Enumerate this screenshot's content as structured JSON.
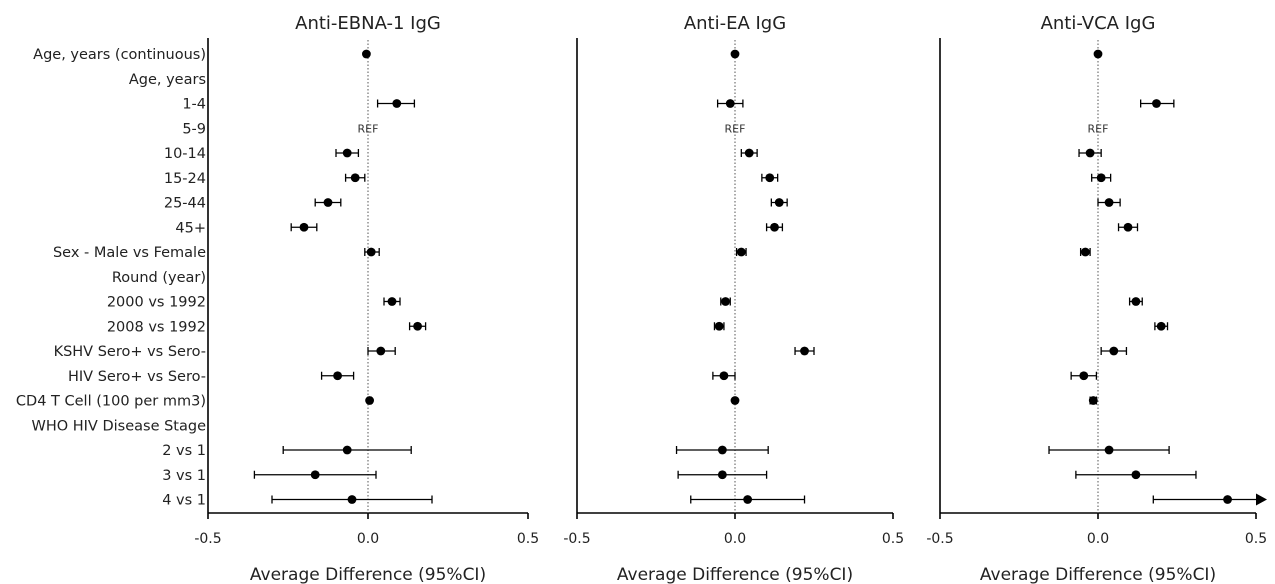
{
  "chart_data": {
    "type": "forest",
    "xlabel": "Average Difference (95%CI)",
    "xlim": [
      -0.5,
      0.5
    ],
    "xticks": [
      -0.5,
      0.0,
      0.5
    ],
    "xtick_labels": [
      "-0.5",
      "0.0",
      "0.5"
    ],
    "reference_text": "REF",
    "rows": [
      "Age, years (continuous)",
      "Age, years",
      "1-4",
      "5-9",
      "10-14",
      "15-24",
      "25-44",
      "45+",
      "Sex - Male vs Female",
      "Round (year)",
      "2000 vs 1992",
      "2008 vs 1992",
      "KSHV Sero+ vs Sero-",
      "HIV Sero+ vs Sero-",
      "CD4 T Cell (100 per mm3)",
      "WHO HIV Disease Stage",
      "2 vs 1",
      "3 vs 1",
      "4 vs 1"
    ],
    "panels": [
      {
        "title": "Anti-EBNA-1 IgG",
        "estimates": [
          {
            "est": -0.005,
            "lo": -0.005,
            "hi": -0.005
          },
          null,
          {
            "est": 0.09,
            "lo": 0.03,
            "hi": 0.145
          },
          "REF",
          {
            "est": -0.065,
            "lo": -0.1,
            "hi": -0.03
          },
          {
            "est": -0.04,
            "lo": -0.07,
            "hi": -0.01
          },
          {
            "est": -0.125,
            "lo": -0.165,
            "hi": -0.085
          },
          {
            "est": -0.2,
            "lo": -0.24,
            "hi": -0.16
          },
          {
            "est": 0.01,
            "lo": -0.01,
            "hi": 0.035
          },
          null,
          {
            "est": 0.075,
            "lo": 0.05,
            "hi": 0.1
          },
          {
            "est": 0.155,
            "lo": 0.13,
            "hi": 0.18
          },
          {
            "est": 0.04,
            "lo": 0.0,
            "hi": 0.085
          },
          {
            "est": -0.095,
            "lo": -0.145,
            "hi": -0.045
          },
          {
            "est": 0.005,
            "lo": 0.0,
            "hi": 0.01
          },
          null,
          {
            "est": -0.065,
            "lo": -0.265,
            "hi": 0.135
          },
          {
            "est": -0.165,
            "lo": -0.355,
            "hi": 0.025
          },
          {
            "est": -0.05,
            "lo": -0.3,
            "hi": 0.2
          }
        ]
      },
      {
        "title": "Anti-EA IgG",
        "estimates": [
          {
            "est": 0.0,
            "lo": 0.0,
            "hi": 0.0
          },
          null,
          {
            "est": -0.015,
            "lo": -0.055,
            "hi": 0.025
          },
          "REF",
          {
            "est": 0.045,
            "lo": 0.02,
            "hi": 0.07
          },
          {
            "est": 0.11,
            "lo": 0.085,
            "hi": 0.135
          },
          {
            "est": 0.14,
            "lo": 0.115,
            "hi": 0.165
          },
          {
            "est": 0.125,
            "lo": 0.1,
            "hi": 0.15
          },
          {
            "est": 0.02,
            "lo": 0.005,
            "hi": 0.035
          },
          null,
          {
            "est": -0.03,
            "lo": -0.045,
            "hi": -0.015
          },
          {
            "est": -0.05,
            "lo": -0.065,
            "hi": -0.035
          },
          {
            "est": 0.22,
            "lo": 0.19,
            "hi": 0.25
          },
          {
            "est": -0.035,
            "lo": -0.07,
            "hi": 0.0
          },
          {
            "est": 0.0,
            "lo": -0.003,
            "hi": 0.003
          },
          null,
          {
            "est": -0.04,
            "lo": -0.185,
            "hi": 0.105
          },
          {
            "est": -0.04,
            "lo": -0.18,
            "hi": 0.1
          },
          {
            "est": 0.04,
            "lo": -0.14,
            "hi": 0.22
          }
        ]
      },
      {
        "title": "Anti-VCA IgG",
        "estimates": [
          {
            "est": 0.0,
            "lo": 0.0,
            "hi": 0.0
          },
          null,
          {
            "est": 0.185,
            "lo": 0.135,
            "hi": 0.24
          },
          "REF",
          {
            "est": -0.025,
            "lo": -0.06,
            "hi": 0.01
          },
          {
            "est": 0.01,
            "lo": -0.02,
            "hi": 0.04
          },
          {
            "est": 0.035,
            "lo": 0.0,
            "hi": 0.07
          },
          {
            "est": 0.095,
            "lo": 0.065,
            "hi": 0.125
          },
          {
            "est": -0.04,
            "lo": -0.055,
            "hi": -0.025
          },
          null,
          {
            "est": 0.12,
            "lo": 0.1,
            "hi": 0.14
          },
          {
            "est": 0.2,
            "lo": 0.18,
            "hi": 0.22
          },
          {
            "est": 0.05,
            "lo": 0.01,
            "hi": 0.09
          },
          {
            "est": -0.045,
            "lo": -0.085,
            "hi": -0.005
          },
          {
            "est": -0.015,
            "lo": -0.025,
            "hi": -0.005
          },
          null,
          {
            "est": 0.035,
            "lo": -0.155,
            "hi": 0.225
          },
          {
            "est": 0.12,
            "lo": -0.07,
            "hi": 0.31
          },
          {
            "est": 0.41,
            "lo": 0.175,
            "hi": 0.5,
            "hi_truncated": true
          }
        ]
      }
    ]
  }
}
